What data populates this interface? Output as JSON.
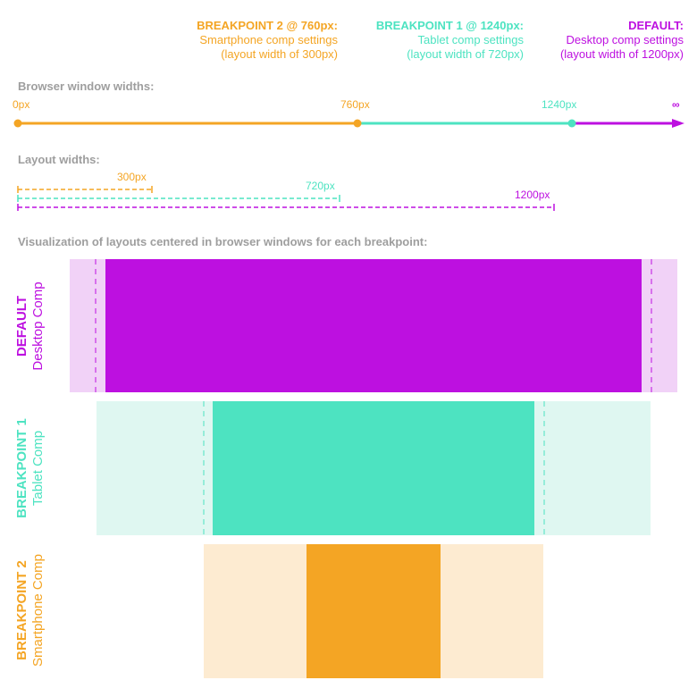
{
  "colors": {
    "orange": "#f4a524",
    "teal": "#4de3c1",
    "purple": "#bd10e0",
    "gray": "#9e9e9e",
    "orange_light": "#fdebd1",
    "teal_light": "#dff7f1",
    "purple_light": "#f1d2f7"
  },
  "headers": {
    "bp2": {
      "title": "BREAKPOINT 2 @ 760px:",
      "line1": "Smartphone comp settings",
      "line2": "(layout width of 300px)"
    },
    "bp1": {
      "title": "BREAKPOINT 1 @ 1240px:",
      "line1": "Tablet comp settings",
      "line2": "(layout width of 720px)"
    },
    "default": {
      "title": "DEFAULT:",
      "line1": "Desktop comp settings",
      "line2": "(layout width of 1200px)"
    }
  },
  "browser": {
    "label": "Browser window widths:",
    "ticks": [
      "0px",
      "760px",
      "1240px",
      "∞"
    ]
  },
  "layout": {
    "label": "Layout widths:",
    "widths": [
      "300px",
      "720px",
      "1200px"
    ]
  },
  "viz": {
    "label": "Visualization of layouts centered in browser windows for each breakpoint:",
    "rows": [
      {
        "title": "DEFAULT",
        "subtitle": "Desktop Comp"
      },
      {
        "title": "BREAKPOINT 1",
        "subtitle": "Tablet Comp"
      },
      {
        "title": "BREAKPOINT 2",
        "subtitle": "Smartphone Comp"
      }
    ]
  }
}
